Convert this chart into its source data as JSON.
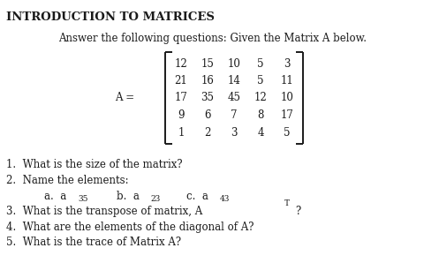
{
  "title": "INTRODUCTION TO MATRICES",
  "subtitle": "Answer the following questions: Given the Matrix A below.",
  "matrix": [
    [
      12,
      15,
      10,
      5,
      3
    ],
    [
      21,
      16,
      14,
      5,
      11
    ],
    [
      17,
      35,
      45,
      12,
      10
    ],
    [
      9,
      6,
      7,
      8,
      17
    ],
    [
      1,
      2,
      3,
      4,
      5
    ]
  ],
  "q1": "1.  What is the size of the matrix?",
  "q2": "2.  Name the elements:",
  "q3_pre": "3.  What is the transpose of matrix, A",
  "q3_post": "?",
  "q4": "4.  What are the elements of the diagonal of A?",
  "q5": "5.  What is the trace of Matrix A?",
  "bg_color": "#ffffff",
  "text_color": "#1a1a1a",
  "font_size_title": 9.5,
  "font_size_body": 8.5,
  "font_size_matrix": 8.5,
  "font_size_sub": 6.5
}
